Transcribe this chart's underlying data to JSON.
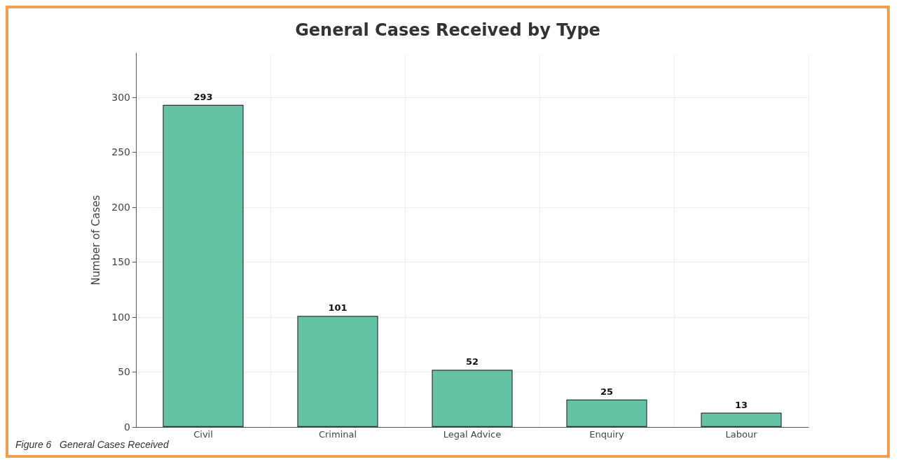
{
  "chart_data": {
    "type": "bar",
    "title": "General Cases Received by Type",
    "ylabel": "Number of Cases",
    "categories": [
      "Civil",
      "Criminal",
      "Legal Advice",
      "Enquiry",
      "Labour"
    ],
    "values": [
      293,
      101,
      52,
      25,
      13
    ],
    "color": "#66c2a5",
    "ylim": [
      0,
      340
    ],
    "yticks": [
      0,
      50,
      100,
      150,
      200,
      250,
      300
    ],
    "grid": true,
    "data_labels": true,
    "annotations": [
      "Figure 6   General Cases Received"
    ]
  }
}
